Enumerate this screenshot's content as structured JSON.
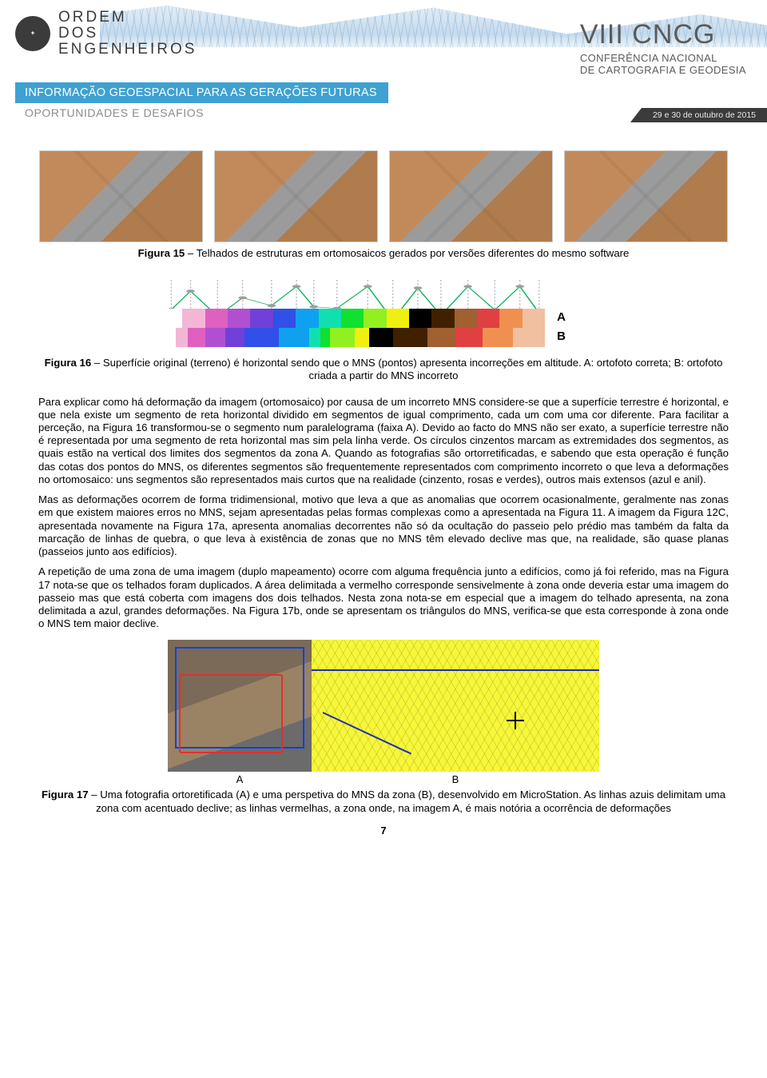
{
  "header": {
    "org_line1": "ORDEM",
    "org_line2": "DOS",
    "org_line3": "ENGENHEIROS",
    "cncg_title": "VIII CNCG",
    "cncg_sub1": "CONFERÊNCIA NACIONAL",
    "cncg_sub2": "DE CARTOGRAFIA E GEODESIA",
    "banner_main": "INFORMAÇÃO GEOESPACIAL PARA AS GERAÇÕES FUTURAS",
    "banner_sub": "OPORTUNIDADES E DESAFIOS",
    "date_badge": "29 e 30 de outubro de 2015"
  },
  "fig15": {
    "label": "Figura 15",
    "text": " – Telhados de estruturas em ortomosaicos gerados por versões diferentes do mesmo software"
  },
  "fig16": {
    "label_A": "A",
    "label_B": "B",
    "label": "Figura 16",
    "text": " – Superfície original (terreno) é horizontal sendo que o MNS (pontos) apresenta incorreções em altitude. A: ortofoto correta; B: ortofoto criada a partir do MNS incorreto",
    "strip": {
      "A_widths": [
        1,
        1,
        1,
        1,
        1,
        1,
        1,
        1,
        1,
        1,
        1,
        1,
        1,
        1,
        1,
        1,
        1
      ],
      "B_widths": [
        0.7,
        0.55,
        0.75,
        0.9,
        0.85,
        1.5,
        1.35,
        0.5,
        0.4,
        1.1,
        0.65,
        1.05,
        1.5,
        1.25,
        1.2,
        1.35,
        1.4
      ],
      "colors": [
        "#ffffff",
        "#f4b6d6",
        "#e060c0",
        "#b050d0",
        "#7040d8",
        "#3050e8",
        "#10a0f0",
        "#10e0b0",
        "#10e030",
        "#90f020",
        "#f0f010",
        "#000000",
        "#402000",
        "#a06030",
        "#e04040",
        "#f09050",
        "#f0c0a0"
      ],
      "background": "#ffffff"
    },
    "dots": {
      "x": [
        0.03,
        0.08,
        0.15,
        0.215,
        0.29,
        0.355,
        0.4,
        0.46,
        0.54,
        0.605,
        0.67,
        0.73,
        0.8,
        0.87,
        0.935,
        0.985
      ],
      "y": [
        0.65,
        0.18,
        0.82,
        0.35,
        0.55,
        0.06,
        0.58,
        0.62,
        0.06,
        0.92,
        0.1,
        0.8,
        0.06,
        0.66,
        0.06,
        0.74
      ],
      "r": 5,
      "fill": "#9d9d9d",
      "line_color": "#00b050",
      "line_width": 1.4
    }
  },
  "paragraphs": {
    "p1": "Para explicar como há deformação da imagem (ortomosaico) por causa de um incorreto MNS considere-se que a superfície terrestre é horizontal, e que nela existe um segmento de reta horizontal dividido em segmentos de igual comprimento, cada um com uma cor diferente. Para facilitar a perceção, na Figura 16 transformou-se o segmento num paralelograma (faixa A). Devido ao facto do MNS não ser exato, a superfície terrestre não é representada por uma segmento de reta horizontal mas sim pela linha verde. Os círculos cinzentos marcam as extremidades dos segmentos, as quais estão na vertical dos limites dos segmentos da zona A. Quando as fotografias são ortorretificadas, e sabendo que esta operação é função das cotas dos pontos do MNS, os diferentes segmentos são frequentemente representados com comprimento incorreto o que leva a deformações no ortomosaico: uns segmentos são representados mais curtos que na realidade (cinzento, rosas e verdes), outros mais extensos (azul e anil).",
    "p2": "Mas as deformações ocorrem de forma tridimensional, motivo que leva a que as anomalias que ocorrem ocasionalmente, geralmente nas zonas em que existem maiores erros no MNS, sejam apresentadas pelas formas complexas como a apresentada na Figura 11. A imagem da Figura 12C, apresentada novamente na Figura 17a, apresenta anomalias decorrentes não só da ocultação do passeio pelo prédio mas também da falta da marcação de linhas de quebra, o que leva à existência de zonas que no MNS têm elevado declive mas que, na realidade, são quase planas (passeios junto aos edifícios).",
    "p3": "A repetição de uma zona de uma imagem (duplo mapeamento) ocorre com alguma frequência junto a edifícios, como já foi referido, mas na Figura 17 nota-se que os telhados foram duplicados. A área delimitada a vermelho corresponde sensivelmente à zona onde deveria estar uma imagem do passeio mas que está coberta com imagens dos dois telhados. Nesta zona nota-se em especial que a imagem do telhado apresenta, na zona delimitada a azul, grandes deformações. Na Figura 17b, onde se apresentam os triângulos do MNS, verifica-se que esta corresponde à zona onde o MNS tem maior declive."
  },
  "fig17": {
    "sub_A": "A",
    "sub_B": "B",
    "label": "Figura 17",
    "text": " – Uma fotografia ortoretificada (A) e uma perspetiva do MNS da zona (B), desenvolvido em MicroStation. As linhas azuis delimitam uma zona com acentuado declive; as linhas vermelhas, a zona onde, na imagem A, é mais notória a ocorrência de deformações"
  },
  "page_number": "7"
}
